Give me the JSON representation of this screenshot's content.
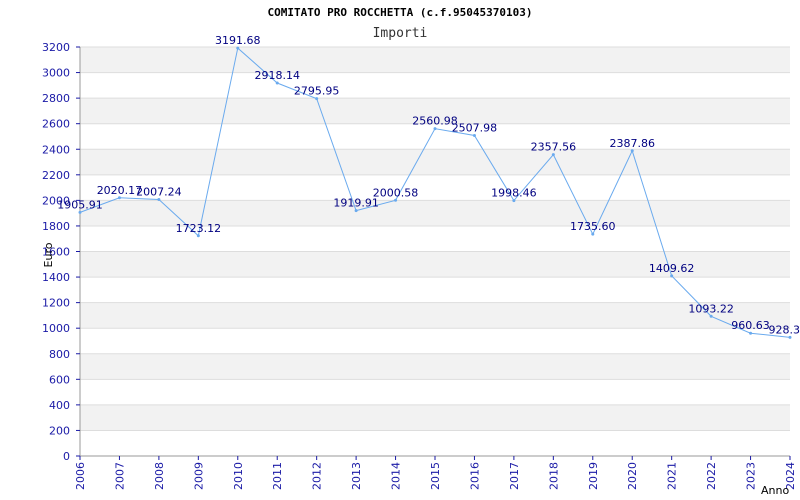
{
  "chart_data": {
    "type": "line",
    "title": "COMITATO PRO ROCCHETTA (c.f.95045370103)",
    "subtitle": "Importi",
    "xlabel": "Anno",
    "ylabel": "Euro",
    "x": [
      "2006",
      "2007",
      "2008",
      "2009",
      "2010",
      "2011",
      "2012",
      "2013",
      "2014",
      "2015",
      "2016",
      "2017",
      "2018",
      "2019",
      "2020",
      "2021",
      "2022",
      "2023",
      "2024"
    ],
    "values": [
      1905.91,
      2020.17,
      2007.24,
      1723.12,
      3191.68,
      2918.14,
      2795.95,
      1919.91,
      2000.58,
      2560.98,
      2507.98,
      1998.46,
      2357.56,
      1735.6,
      2387.86,
      1409.62,
      1093.22,
      960.63,
      928.3
    ],
    "labels": [
      "1905.91",
      "2020.17",
      "2007.24",
      "1723.12",
      "3191.68",
      "2918.14",
      "2795.95",
      "1919.91",
      "2000.58",
      "2560.98",
      "2507.98",
      "1998.46",
      "2357.56",
      "1735.60",
      "2387.86",
      "1409.62",
      "1093.22",
      "960.63",
      "928.3"
    ],
    "ylim": [
      0,
      3200
    ],
    "yticks": [
      0,
      200,
      400,
      600,
      800,
      1000,
      1200,
      1400,
      1600,
      1800,
      2000,
      2200,
      2400,
      2600,
      2800,
      3000,
      3200
    ],
    "grid": true,
    "line_color": "#6aaaee",
    "band_color": "#f2f2f2"
  }
}
